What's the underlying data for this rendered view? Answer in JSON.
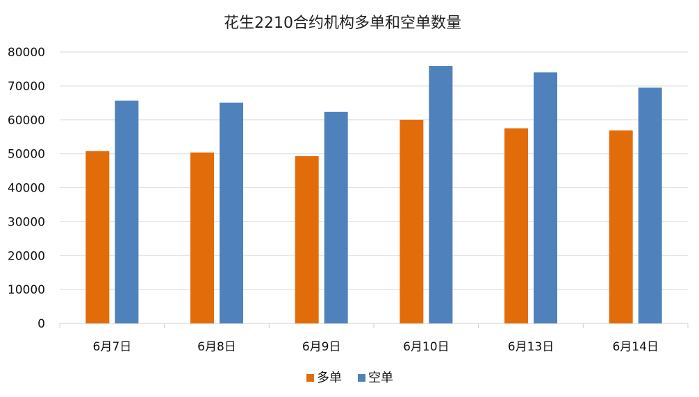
{
  "chart_data": {
    "type": "bar",
    "title": "花生2210合约机构多单和空单数量",
    "categories": [
      "6月7日",
      "6月8日",
      "6月9日",
      "6月10日",
      "6月13日",
      "6月14日"
    ],
    "series": [
      {
        "name": "多单",
        "color": "#E36C0A",
        "values": [
          50800,
          50400,
          49300,
          60000,
          57500,
          56900
        ]
      },
      {
        "name": "空单",
        "color": "#4F81BD",
        "values": [
          65700,
          65100,
          62400,
          75900,
          74000,
          69500
        ]
      }
    ],
    "ylim": [
      0,
      80000
    ],
    "yticks": [
      0,
      10000,
      20000,
      30000,
      40000,
      50000,
      60000,
      70000,
      80000
    ],
    "grid": true,
    "legend_position": "bottom-center"
  }
}
